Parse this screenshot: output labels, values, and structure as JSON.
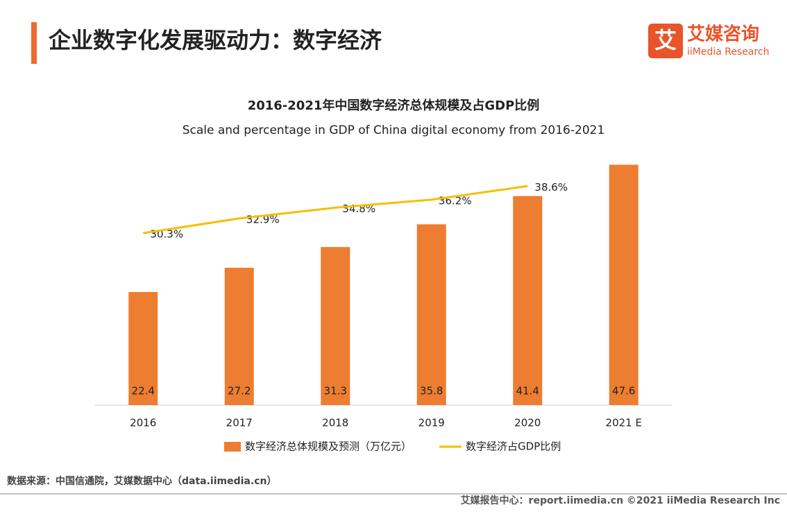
{
  "header": {
    "title": "企业数字化发展驱动力：数字经济",
    "logo_icon": "艾",
    "logo_cn": "艾媒咨询",
    "logo_en": "iiMedia Research"
  },
  "chart_data": {
    "type": "bar",
    "title": "2016-2021年中国数字经济总体规模及占GDP比例",
    "subtitle": "Scale and percentage in GDP of China digital economy from 2016-2021",
    "categories": [
      "2016",
      "2017",
      "2018",
      "2019",
      "2020",
      "2021 E"
    ],
    "series": [
      {
        "name": "数字经济总体规模及预测（万亿元）",
        "type": "bar",
        "color": "#ed7d31",
        "values": [
          22.4,
          27.2,
          31.3,
          35.8,
          41.4,
          47.6
        ]
      },
      {
        "name": "数字经济占GDP比例",
        "type": "line",
        "axis": "y2",
        "color": "#f5bf00",
        "values": [
          30.3,
          32.9,
          34.8,
          36.2,
          38.6,
          null
        ],
        "value_labels": [
          "30.3%",
          "32.9%",
          "34.8%",
          "36.2%",
          "38.6%",
          null
        ]
      }
    ],
    "ylim": [
      0,
      50
    ],
    "y2lim": [
      0,
      44.5
    ]
  },
  "footer": {
    "source": "数据来源：中国信通院，艾媒数据中心（data.iimedia.cn）",
    "copyright": "艾媒报告中心：report.iimedia.cn  ©2021  iiMedia Research  Inc"
  }
}
